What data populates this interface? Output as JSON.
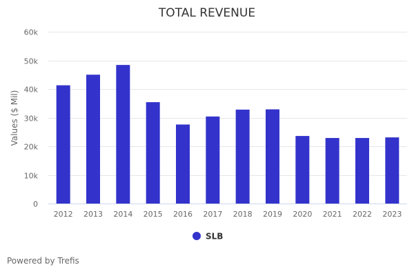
{
  "chart_data": {
    "type": "bar",
    "title": "TOTAL REVENUE",
    "xlabel": "",
    "ylabel": "Values ($ Mil)",
    "categories": [
      "2012",
      "2013",
      "2014",
      "2015",
      "2016",
      "2017",
      "2018",
      "2019",
      "2020",
      "2021",
      "2022",
      "2023"
    ],
    "series": [
      {
        "name": "SLB",
        "color": "#3333cc",
        "values": [
          41300,
          45000,
          48400,
          35400,
          27600,
          30400,
          32800,
          32900,
          23600,
          22900,
          22900,
          23100
        ]
      }
    ],
    "ylim": [
      0,
      60000
    ],
    "yticks": [
      0,
      10000,
      20000,
      30000,
      40000,
      50000,
      60000
    ],
    "ytick_labels": [
      "0",
      "10k",
      "20k",
      "30k",
      "40k",
      "50k",
      "60k"
    ],
    "grid": true,
    "legend": "bottom-center"
  },
  "credit": "Powered by Trefis"
}
